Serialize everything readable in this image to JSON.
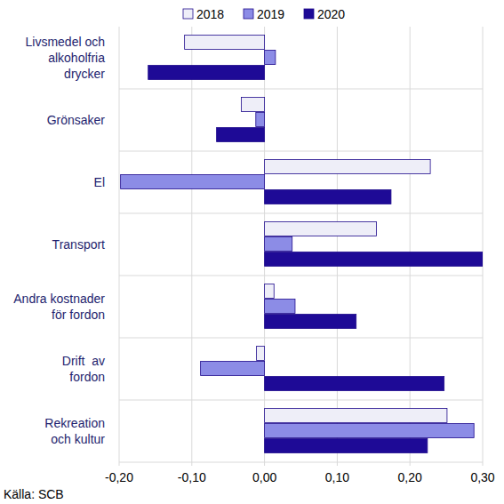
{
  "chart_data": {
    "type": "bar",
    "orientation": "horizontal",
    "categories": [
      "Livsmedel och\nalkoholfria\ndrycker",
      "Grönsaker",
      "El",
      "Transport",
      "Andra kostnader\nför fordon",
      "Drift  av\nfordon",
      "Rekreation\noch kultur"
    ],
    "series": [
      {
        "name": "2018",
        "color": "#eeeef8",
        "values": [
          -0.11,
          -0.032,
          0.228,
          0.154,
          0.013,
          -0.011,
          0.251
        ]
      },
      {
        "name": "2019",
        "color": "#8c8ce6",
        "values": [
          0.015,
          -0.012,
          -0.198,
          0.038,
          0.042,
          -0.088,
          0.288
        ]
      },
      {
        "name": "2020",
        "color": "#1e0a96",
        "values": [
          -0.16,
          -0.066,
          0.174,
          0.3,
          0.126,
          0.247,
          0.224
        ]
      }
    ],
    "xlim": [
      -0.2,
      0.3
    ],
    "xticks": [
      {
        "value": -0.2,
        "label": "-0,20"
      },
      {
        "value": -0.1,
        "label": "-0,10"
      },
      {
        "value": 0.0,
        "label": "0,00"
      },
      {
        "value": 0.1,
        "label": "0,10"
      },
      {
        "value": 0.2,
        "label": "0,20"
      },
      {
        "value": 0.3,
        "label": "0,30"
      }
    ],
    "grid": true,
    "legend": "top",
    "source": "Källa: SCB"
  }
}
